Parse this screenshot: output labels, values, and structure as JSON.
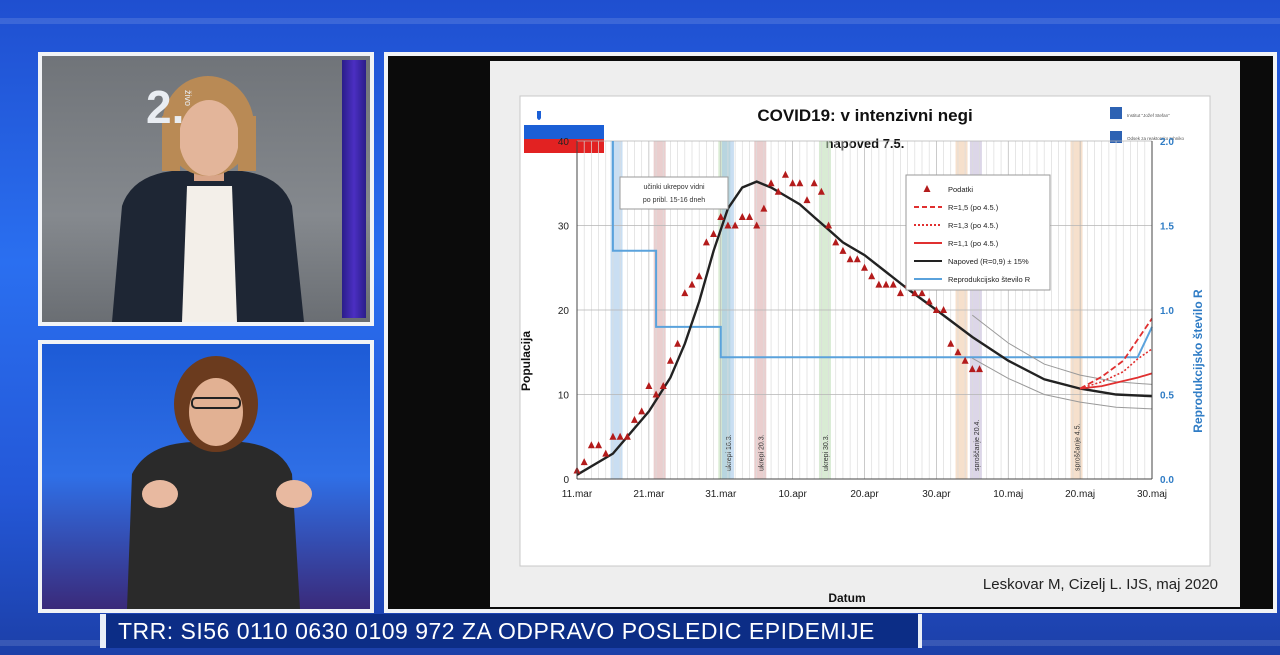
{
  "channel_logo": {
    "number": "2.",
    "name": "živo"
  },
  "ticker": {
    "text": "TRR: SI56 0110 0630 0109 972 ZA ODPRAVO POSLEDIC EPIDEMIJE"
  },
  "slide": {
    "credit": "Leskovar M, Cizelj L. IJS, maj 2020",
    "institute_lines": [
      "Institut \"Jožef Stefan\"",
      "Odsek za reaktorsko tehniko"
    ]
  },
  "colors": {
    "observed": "#b31b1b",
    "forecast": "#222222",
    "r_line": "#5aa2dc",
    "scenario": "#e03030"
  },
  "chart_data": {
    "type": "line",
    "title": "COVID19: v intenzivni negi",
    "subtitle": "napoved 7.5.",
    "xlabel": "Datum",
    "ylabel": "Populacija",
    "y2label": "Reprodukcijsko število R",
    "ylim": [
      0,
      40
    ],
    "y2lim": [
      0,
      2.0
    ],
    "xlim": [
      0,
      80
    ],
    "x_ticks": [
      "11.mar",
      "21.mar",
      "31.mar",
      "10.apr",
      "20.apr",
      "30.apr",
      "10.maj",
      "20.maj",
      "30.maj"
    ],
    "y_ticks": [
      "0",
      "10",
      "20",
      "30",
      "40"
    ],
    "y2_ticks": [
      "0.0",
      "0.5",
      "1.0",
      "1.5",
      "2.0"
    ],
    "grid": true,
    "legend_position": "top-right",
    "annotation": "učinki ukrepov vidni po pribl. 15-16 dneh",
    "event_bands": [
      {
        "day": 5.5,
        "label": "",
        "color": "#9cc2e8"
      },
      {
        "day": 11.5,
        "label": "",
        "color": "#d9a6a6"
      },
      {
        "day": 20.5,
        "label": "",
        "color": "#b9dbb0"
      },
      {
        "day": 21,
        "label": "ukrepi 16.3.",
        "color": "#9cc2e8"
      },
      {
        "day": 25.5,
        "label": "ukrepi 20.3.",
        "color": "#d9a6a6"
      },
      {
        "day": 34.5,
        "label": "ukrepi 30.3.",
        "color": "#b9dbb0"
      },
      {
        "day": 53.5,
        "label": "",
        "color": "#efc7a2"
      },
      {
        "day": 55.5,
        "label": "sproščanje 20.4.",
        "color": "#c0b4d6"
      },
      {
        "day": 69.5,
        "label": "sproščanje 4.5.",
        "color": "#efc7a2"
      }
    ],
    "legend": [
      {
        "label": "Podatki",
        "style": "marker"
      },
      {
        "label": "R=1,5 (po 4.5.)",
        "style": "dashed"
      },
      {
        "label": "R=1,3 (po 4.5.)",
        "style": "dotted"
      },
      {
        "label": "R=1,1 (po 4.5.)",
        "style": "solid-red"
      },
      {
        "label": "Napoved (R=0,9) ± 15%",
        "style": "solid-black"
      },
      {
        "label": "Reprodukcijsko število R",
        "style": "solid-blue"
      }
    ],
    "series": [
      {
        "name": "Podatki",
        "x": [
          0,
          1,
          2,
          3,
          4,
          5,
          6,
          7,
          8,
          9,
          10,
          11,
          12,
          13,
          14,
          15,
          16,
          17,
          18,
          19,
          20,
          21,
          22,
          23,
          24,
          25,
          26,
          27,
          28,
          29,
          30,
          31,
          32,
          33,
          34,
          35,
          36,
          37,
          38,
          39,
          40,
          41,
          42,
          43,
          44,
          45,
          46,
          47,
          48,
          49,
          50,
          51,
          52,
          53,
          54,
          55,
          56
        ],
        "y": [
          1,
          2,
          4,
          4,
          3,
          5,
          5,
          5,
          7,
          8,
          11,
          10,
          11,
          14,
          16,
          22,
          23,
          24,
          28,
          29,
          31,
          30,
          30,
          31,
          31,
          30,
          32,
          35,
          34,
          36,
          35,
          35,
          33,
          35,
          34,
          30,
          28,
          27,
          26,
          26,
          25,
          24,
          23,
          23,
          23,
          22,
          23,
          22,
          22,
          21,
          20,
          20,
          16,
          15,
          14,
          13,
          13
        ]
      },
      {
        "name": "Napoved (R=0,9) ± 15%",
        "x": [
          0,
          5,
          10,
          13,
          15,
          17,
          19,
          21,
          23,
          25,
          27,
          29,
          31,
          33,
          35,
          37,
          40,
          43,
          46,
          50,
          55,
          60,
          65,
          70,
          75,
          80
        ],
        "y": [
          0.5,
          3,
          8,
          12,
          16,
          21,
          27,
          32,
          34.5,
          35.2,
          34.5,
          33.5,
          32.5,
          31,
          29.5,
          28,
          26.5,
          24.5,
          22.5,
          20,
          16.8,
          14,
          11.8,
          10.7,
          10,
          9.8
        ]
      },
      {
        "name": "Napoved +15%",
        "x": [
          55,
          60,
          65,
          70,
          75,
          80
        ],
        "y": [
          19.4,
          16.1,
          13.6,
          12.3,
          11.5,
          11.2
        ]
      },
      {
        "name": "Napoved -15%",
        "x": [
          55,
          60,
          65,
          70,
          75,
          80
        ],
        "y": [
          14.3,
          11.9,
          10.0,
          9.1,
          8.5,
          8.3
        ]
      },
      {
        "name": "R=1,5 (po 4.5.)",
        "x": [
          70,
          73,
          76,
          78,
          80
        ],
        "y": [
          10.7,
          12.1,
          14.0,
          16.5,
          19.0
        ]
      },
      {
        "name": "R=1,3 (po 4.5.)",
        "x": [
          70,
          73,
          76,
          78,
          80
        ],
        "y": [
          10.7,
          11.5,
          12.7,
          14.2,
          15.4
        ]
      },
      {
        "name": "R=1,1 (po 4.5.)",
        "x": [
          70,
          73,
          76,
          78,
          80
        ],
        "y": [
          10.7,
          11.0,
          11.6,
          12.0,
          12.5
        ]
      },
      {
        "name": "Reprodukcijsko število R",
        "axis": "y2",
        "x": [
          5,
          5,
          9,
          9,
          11,
          11,
          16,
          16,
          20,
          20,
          78,
          80
        ],
        "y": [
          2.0,
          1.35,
          1.35,
          1.35,
          1.35,
          0.9,
          0.9,
          0.9,
          0.9,
          0.72,
          0.72,
          0.9
        ]
      }
    ]
  }
}
